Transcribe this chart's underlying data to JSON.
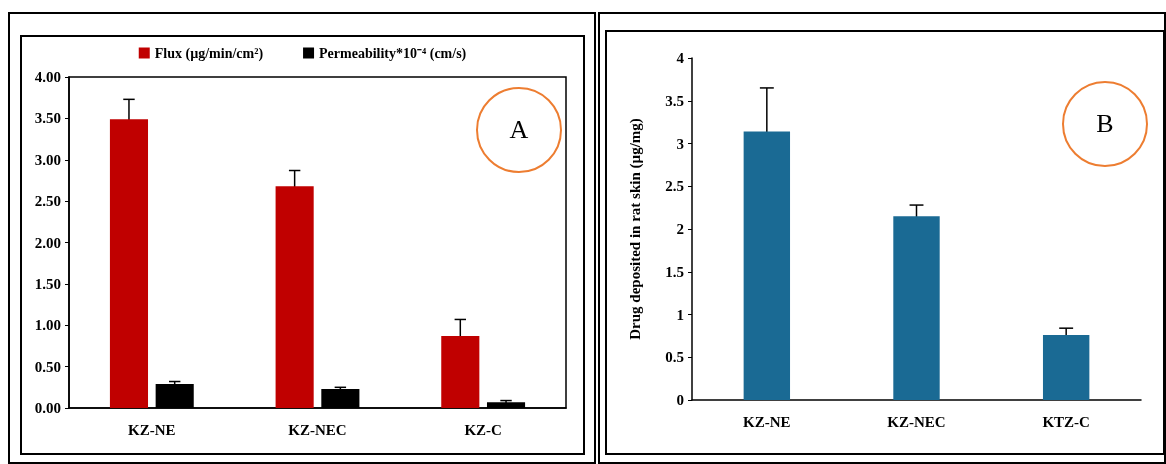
{
  "chart_data": [
    {
      "type": "bar",
      "categories": [
        "KZ-NE",
        "KZ-NEC",
        "KZ-C"
      ],
      "series": [
        {
          "name": "Flux (µg/min/cm²)",
          "color": "#c00000",
          "values": [
            3.49,
            2.68,
            0.87
          ],
          "errors": [
            0.24,
            0.19,
            0.2
          ]
        },
        {
          "name": "Permeability*10⁻⁴ (cm/s)",
          "color": "#000000",
          "values": [
            0.29,
            0.23,
            0.07
          ],
          "errors": [
            0.03,
            0.02,
            0.02
          ]
        }
      ],
      "ylim": [
        0,
        4
      ],
      "yticks": [
        {
          "value": 0,
          "label": "0.00"
        },
        {
          "value": 0.5,
          "label": "0.50"
        },
        {
          "value": 1,
          "label": "1.00"
        },
        {
          "value": 1.5,
          "label": "1.50"
        },
        {
          "value": 2,
          "label": "2.00"
        },
        {
          "value": 2.5,
          "label": "2.50"
        },
        {
          "value": 3,
          "label": "3.00"
        },
        {
          "value": 3.5,
          "label": "3.50"
        },
        {
          "value": 4,
          "label": "4.00"
        }
      ],
      "legend": "top",
      "grid": false,
      "annotations": [
        "A"
      ]
    },
    {
      "type": "bar",
      "categories": [
        "KZ-NE",
        "KZ-NEC",
        "KTZ-C"
      ],
      "series": [
        {
          "color": "#1a6a94",
          "values": [
            3.14,
            2.15,
            0.76
          ],
          "errors": [
            0.51,
            0.13,
            0.08
          ]
        }
      ],
      "ylabel": "Drug deposited in rat skin (µg/mg)",
      "ylim": [
        0,
        4
      ],
      "yticks": [
        0,
        0.5,
        1,
        1.5,
        2,
        2.5,
        3,
        3.5,
        4
      ],
      "legend": false,
      "grid": false,
      "annotations": [
        "B"
      ]
    }
  ]
}
